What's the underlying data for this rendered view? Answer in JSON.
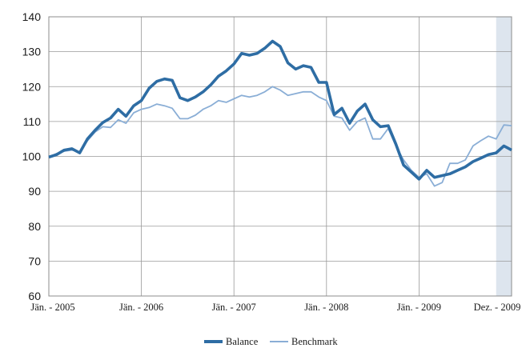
{
  "chart_data": {
    "type": "line",
    "ylim": [
      60,
      140
    ],
    "y_ticks": [
      "140",
      "130",
      "120",
      "110",
      "100",
      "90",
      "80",
      "70",
      "60"
    ],
    "x_ticks": [
      "Jän. - 2005",
      "Jän. - 2006",
      "Jän. - 2007",
      "Jän. - 2008",
      "Jän. - 2009",
      "Dez. - 2009"
    ],
    "x_months_count": 60,
    "grid": true,
    "legend_position": "bottom-center",
    "shaded_period": {
      "from_month": 58,
      "to_month": 60,
      "color": "#dde5ee"
    },
    "series": [
      {
        "name": "Balance",
        "color": "#2e6da4",
        "values": [
          99.8,
          100.5,
          101.8,
          102.2,
          101,
          105,
          107.5,
          109.7,
          111,
          113.5,
          111.5,
          114.5,
          116,
          119.5,
          121.5,
          122.2,
          121.8,
          116.8,
          116,
          117,
          118.5,
          120.5,
          123,
          124.5,
          126.5,
          129.5,
          129,
          129.5,
          131,
          133,
          131.5,
          126.8,
          125,
          126,
          125.5,
          121.2,
          121.2,
          112,
          113.8,
          109.5,
          113,
          115,
          110.5,
          108.5,
          108.8,
          103.5,
          97.5,
          95.5,
          93.5,
          96,
          94,
          94.5,
          95,
          96,
          97,
          98.5,
          99.5,
          100.5,
          101,
          103,
          101.8
        ]
      },
      {
        "name": "Benchmark",
        "color": "#8aaed6",
        "values": [
          99.8,
          100.8,
          101.5,
          101.8,
          101.3,
          104.5,
          107,
          108.5,
          108.3,
          110.5,
          109.5,
          112.5,
          113.5,
          114,
          115,
          114.5,
          113.8,
          110.8,
          110.8,
          111.8,
          113.5,
          114.5,
          116,
          115.5,
          116.5,
          117.5,
          117,
          117.5,
          118.5,
          120,
          119,
          117.5,
          118,
          118.5,
          118.5,
          117,
          116,
          111.5,
          111,
          107.5,
          110,
          111,
          105,
          105,
          108,
          103,
          99,
          96,
          94,
          95,
          91.5,
          92.5,
          98,
          98,
          99,
          103,
          104.5,
          105.8,
          105,
          109,
          108.8
        ]
      }
    ]
  }
}
